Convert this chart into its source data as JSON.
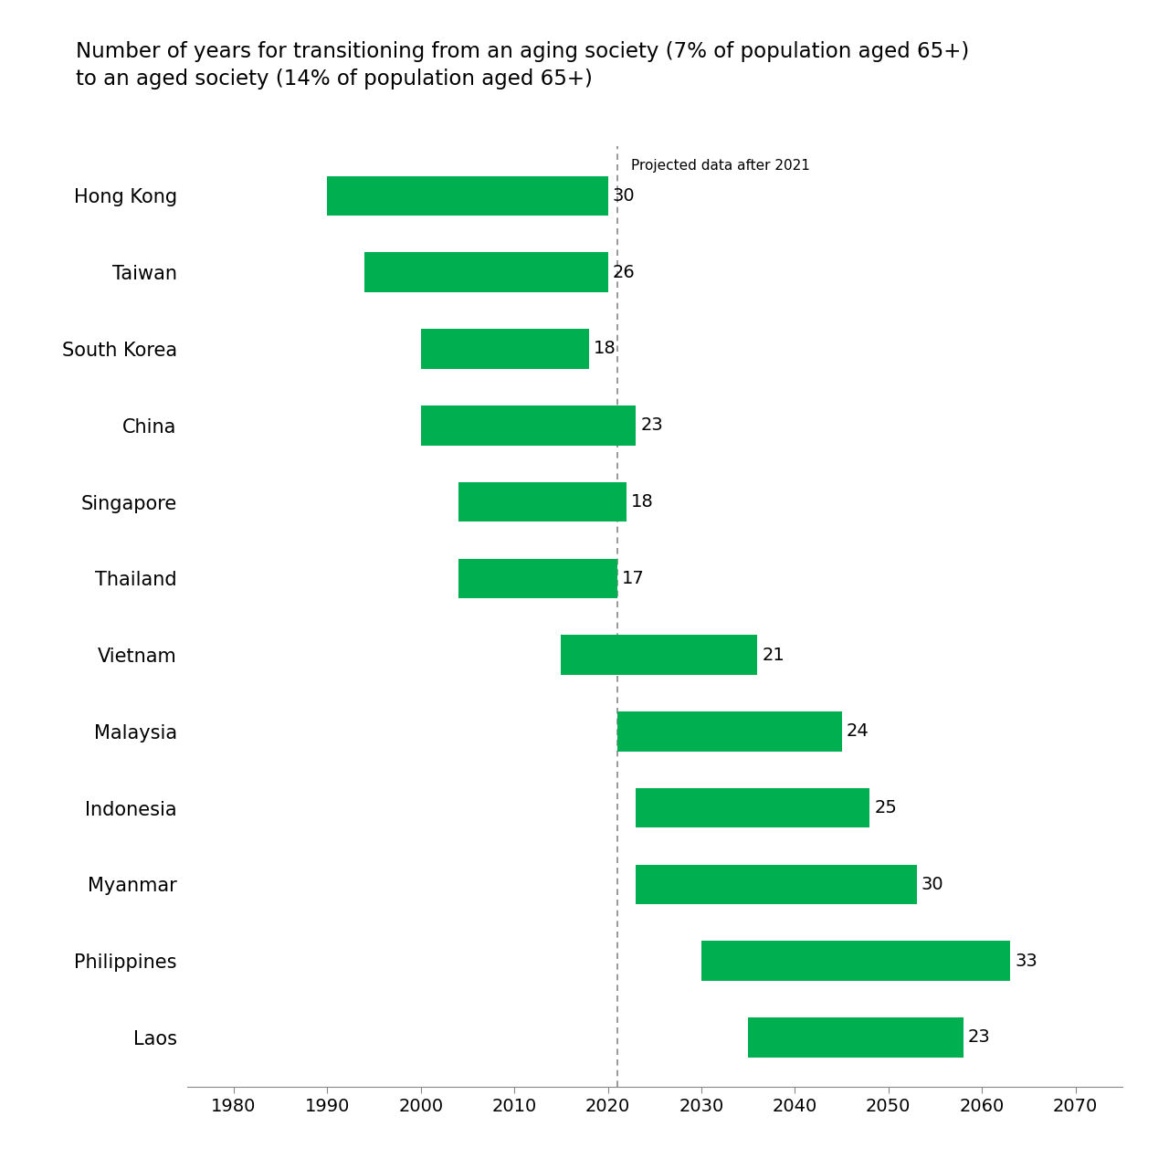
{
  "title_line1": "Number of years for transitioning from an aging society (7% of population aged 65+)",
  "title_line2": "to an aged society (14% of population aged 65+)",
  "countries": [
    "Hong Kong",
    "Taiwan",
    "South Korea",
    "China",
    "Singapore",
    "Thailand",
    "Vietnam",
    "Malaysia",
    "Indonesia",
    "Myanmar",
    "Philippines",
    "Laos"
  ],
  "start_years": [
    1990,
    1994,
    2000,
    2000,
    2004,
    2004,
    2015,
    2021,
    2023,
    2023,
    2030,
    2035
  ],
  "durations": [
    30,
    26,
    18,
    23,
    18,
    17,
    21,
    24,
    25,
    30,
    33,
    23
  ],
  "bar_color": "#00B050",
  "dashed_line_x": 2021,
  "dashed_line_label": "Projected data after 2021",
  "xlim_left": 1975,
  "xlim_right": 2075,
  "xticks": [
    1980,
    1990,
    2000,
    2010,
    2020,
    2030,
    2040,
    2050,
    2060,
    2070
  ],
  "bar_height": 0.52,
  "background_color": "#ffffff",
  "title_fontsize": 16.5,
  "country_fontsize": 15,
  "tick_fontsize": 14,
  "annotation_fontsize": 14,
  "projected_label_fontsize": 11
}
